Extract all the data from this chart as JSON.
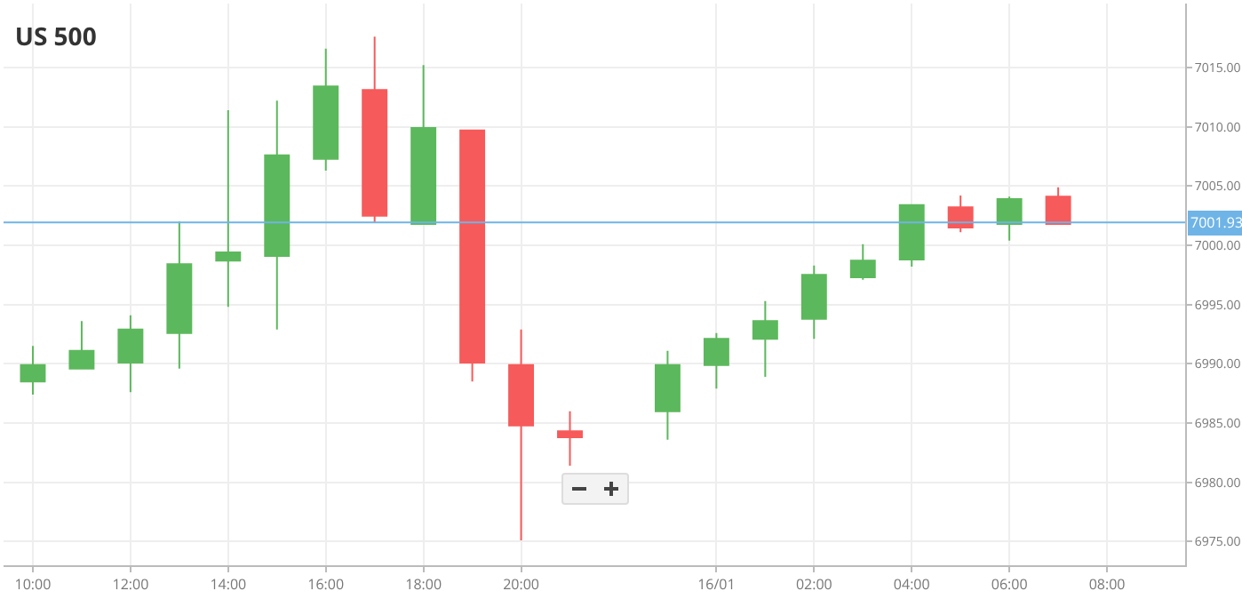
{
  "chart_data": {
    "type": "candlestick",
    "title": "US 500",
    "x": [
      "--01-15T10:00",
      "--01-15T11:00",
      "--01-15T12:00",
      "--01-15T13:00",
      "--01-15T14:00",
      "--01-15T15:00",
      "--01-15T16:00",
      "--01-15T17:00",
      "--01-15T18:00",
      "--01-15T19:00",
      "--01-15T20:00",
      "--01-15T21:00",
      "--01-15T23:00",
      "--01-16T00:00",
      "--01-16T01:00",
      "--01-16T02:00",
      "--01-16T03:00",
      "--01-16T04:00",
      "--01-16T05:00",
      "--01-16T06:00",
      "--01-16T07:00"
    ],
    "ohlc": [
      [
        6988.5,
        6991.5,
        6987.4,
        6989.9
      ],
      [
        6989.6,
        6993.6,
        6989.6,
        6991.1
      ],
      [
        6990.1,
        6994.1,
        6987.6,
        6992.9
      ],
      [
        6992.6,
        7002.0,
        6989.6,
        6998.4
      ],
      [
        6998.7,
        7011.4,
        6994.8,
        6999.4
      ],
      [
        6999.1,
        7012.2,
        6992.9,
        7007.6
      ],
      [
        7007.3,
        7016.6,
        7006.3,
        7013.4
      ],
      [
        7013.1,
        7017.6,
        7001.9,
        7002.5
      ],
      [
        7001.8,
        7015.2,
        7001.8,
        7009.9
      ],
      [
        7009.7,
        7009.7,
        6988.5,
        6990.1
      ],
      [
        6989.9,
        6992.9,
        6975.1,
        6984.8
      ],
      [
        6984.3,
        6986.0,
        6981.4,
        6983.8
      ],
      [
        6986.0,
        6991.1,
        6983.6,
        6989.9
      ],
      [
        6989.9,
        6992.6,
        6987.9,
        6992.1
      ],
      [
        6992.1,
        6995.3,
        6988.9,
        6993.6
      ],
      [
        6993.8,
        6998.3,
        6992.1,
        6997.5
      ],
      [
        6997.3,
        7000.1,
        6997.1,
        6998.7
      ],
      [
        6998.8,
        7003.4,
        6998.2,
        7003.4
      ],
      [
        7003.2,
        7004.2,
        7001.1,
        7001.5
      ],
      [
        7001.8,
        7004.1,
        7000.4,
        7003.9
      ],
      [
        7004.1,
        7004.9,
        7001.8,
        7001.8
      ]
    ],
    "colors": [
      "#5cb85c",
      "#5cb85c",
      "#5cb85c",
      "#5cb85c",
      "#5cb85c",
      "#5cb85c",
      "#5cb85c",
      "#f75a5a",
      "#5cb85c",
      "#f75a5a",
      "#f75a5a",
      "#f75a5a",
      "#5cb85c",
      "#5cb85c",
      "#5cb85c",
      "#5cb85c",
      "#5cb85c",
      "#5cb85c",
      "#f75a5a",
      "#5cb85c",
      "#f75a5a"
    ],
    "xlim": [
      "--01-15T09:24",
      "--01-16T09:36"
    ],
    "xticks": [
      {
        "value": "--01-15T10:00",
        "label": "10:00"
      },
      {
        "value": "--01-15T12:00",
        "label": "12:00"
      },
      {
        "value": "--01-15T14:00",
        "label": "14:00"
      },
      {
        "value": "--01-15T16:00",
        "label": "16:00"
      },
      {
        "value": "--01-15T18:00",
        "label": "18:00"
      },
      {
        "value": "--01-15T20:00",
        "label": "20:00"
      },
      {
        "value": "--01-16T00:00",
        "label": "16/01"
      },
      {
        "value": "--01-16T02:00",
        "label": "02:00"
      },
      {
        "value": "--01-16T04:00",
        "label": "04:00"
      },
      {
        "value": "--01-16T06:00",
        "label": "06:00"
      },
      {
        "value": "--01-16T08:00",
        "label": "08:00"
      }
    ],
    "ylim": [
      6973,
      7020.4
    ],
    "yticks": [
      {
        "value": 6975,
        "label": "6975.00"
      },
      {
        "value": 6980,
        "label": "6980.00"
      },
      {
        "value": 6985,
        "label": "6985.00"
      },
      {
        "value": 6990,
        "label": "6990.00"
      },
      {
        "value": 6995,
        "label": "6995.00"
      },
      {
        "value": 7000,
        "label": "7000.00"
      },
      {
        "value": 7005,
        "label": "7005.00"
      },
      {
        "value": 7010,
        "label": "7010.00"
      },
      {
        "value": 7015,
        "label": "7015.00"
      }
    ],
    "ref_lines": [
      {
        "axis": "y",
        "value": 7001.93,
        "label": "7001.93",
        "color": "#6fb4e6"
      }
    ],
    "grid": true
  }
}
